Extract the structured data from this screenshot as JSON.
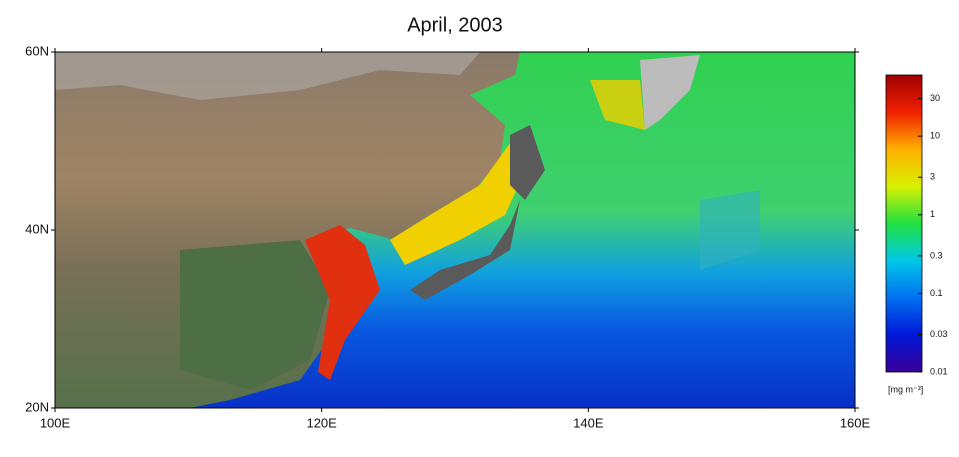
{
  "map": {
    "title": "April, 2003",
    "xlim": [
      100,
      160
    ],
    "xticks": [
      {
        "value": 100,
        "label": "100E"
      },
      {
        "value": 120,
        "label": "120E"
      },
      {
        "value": 140,
        "label": "140E"
      },
      {
        "value": 160,
        "label": "160E"
      }
    ],
    "ylim": [
      20,
      60
    ],
    "yticks": [
      {
        "value": 20,
        "label": "20N"
      },
      {
        "value": 40,
        "label": "40N"
      },
      {
        "value": 60,
        "label": "60N"
      }
    ],
    "colorbar": {
      "label": "[mg m⁻³]",
      "log": true,
      "lim": [
        0.01,
        60
      ],
      "ticks": [
        0.01,
        0.03,
        0.1,
        0.3,
        1,
        3,
        10,
        30
      ],
      "colors": [
        "#3a0098",
        "#0018d8",
        "#0070f0",
        "#00c8e8",
        "#20e040",
        "#d8f000",
        "#ffb000",
        "#f02000",
        "#a00000"
      ]
    }
  }
}
